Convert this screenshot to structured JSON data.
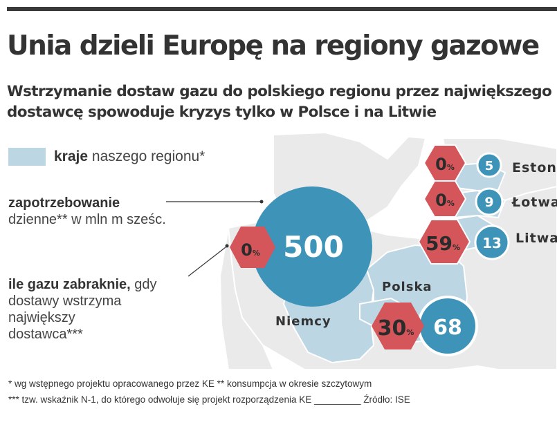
{
  "title": "Unia dzieli Europę na regiony gazowe",
  "subtitle_line1": "Wstrzymanie dostaw gazu do polskiego regionu przez największego",
  "subtitle_line2": "dostawcę spowoduje kryzys tylko w Polsce i na Litwie",
  "legend": {
    "bold": "kraje",
    "rest": "naszego regionu*"
  },
  "labels": {
    "demand_bold": "zapotrzebowanie",
    "demand_rest": "dzienne** w mln m sześc.",
    "shortage_bold": "ile gazu zabraknie,",
    "shortage_rest1": "gdy",
    "shortage_rest2": "dostawy wstrzyma",
    "shortage_rest3": "największy",
    "shortage_rest4": "dostawca***"
  },
  "countries": [
    {
      "name": "Niemcy",
      "demand": "500",
      "shortage": "0",
      "unit": "%"
    },
    {
      "name": "Polska",
      "demand": "68",
      "shortage": "30",
      "unit": "%"
    },
    {
      "name": "Litwa",
      "demand": "13",
      "shortage": "59",
      "unit": "%"
    },
    {
      "name": "Łotwa",
      "demand": "9",
      "shortage": "0",
      "unit": "%"
    },
    {
      "name": "Estonia",
      "demand": "5",
      "shortage": "0",
      "unit": "%"
    }
  ],
  "footnotes": {
    "line1": "* wg wstępnego projektu opracowanego przez KE     ** konsumpcja w okresie szczytowym",
    "line2": "*** tzw. wskaźnik N-1, do którego odwołuje się projekt rozporządzenia KE _________  Źródło: ISE"
  },
  "colors": {
    "region": "#bcd6e4",
    "land": "#eaeaea",
    "border": "#ffffff",
    "demand_circle": "#3d93b8",
    "demand_ring": "#ffffff",
    "shortage_hex": "#d4565a",
    "hex_text": "#2b2b2b"
  }
}
